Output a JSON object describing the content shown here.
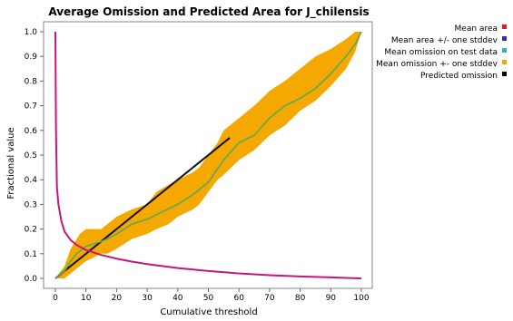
{
  "chart_data": {
    "type": "line",
    "title": "Average Omission and Predicted Area for J_chilensis",
    "xlabel": "Cumulative threshold",
    "ylabel": "Fractional value",
    "xlim": [
      0,
      100
    ],
    "ylim": [
      0,
      1
    ],
    "x_ticks": [
      "0",
      "10",
      "20",
      "30",
      "40",
      "50",
      "60",
      "70",
      "80",
      "90",
      "100"
    ],
    "y_ticks": [
      "0.0",
      "0.1",
      "0.2",
      "0.3",
      "0.4",
      "0.5",
      "0.6",
      "0.7",
      "0.8",
      "0.9",
      "1.0"
    ],
    "grid": false,
    "legend_position": "top-right, outside plot",
    "legend": [
      {
        "label": "Mean area",
        "color": "#e8141e"
      },
      {
        "label": "Mean area +/- one stddev",
        "color": "#2b2bd8"
      },
      {
        "label": "Mean omission on test data",
        "color": "#30b0c8"
      },
      {
        "label": "Mean omission +- one stddev",
        "color": "#f5a800"
      },
      {
        "label": "Predicted omission",
        "color": "#000000"
      }
    ],
    "series": [
      {
        "name": "Mean area",
        "color": "#c8157a",
        "x": [
          0,
          0.2,
          0.5,
          1,
          2,
          3,
          5,
          7,
          10,
          15,
          20,
          25,
          30,
          40,
          50,
          60,
          70,
          80,
          90,
          95,
          100
        ],
        "y": [
          1.0,
          0.6,
          0.37,
          0.3,
          0.23,
          0.19,
          0.155,
          0.135,
          0.115,
          0.095,
          0.08,
          0.068,
          0.058,
          0.042,
          0.03,
          0.02,
          0.013,
          0.008,
          0.004,
          0.002,
          0.0
        ]
      },
      {
        "name": "Mean omission +- one stddev",
        "color": "#f5a800",
        "x": [
          0,
          3,
          5,
          8,
          10,
          15,
          17,
          20,
          25,
          30,
          33,
          37,
          40,
          45,
          47,
          50,
          53,
          55,
          60,
          65,
          70,
          75,
          80,
          85,
          90,
          95,
          98,
          100
        ],
        "upper": [
          0.0,
          0.05,
          0.12,
          0.18,
          0.2,
          0.2,
          0.22,
          0.25,
          0.28,
          0.3,
          0.35,
          0.38,
          0.4,
          0.43,
          0.45,
          0.5,
          0.55,
          0.6,
          0.65,
          0.7,
          0.76,
          0.8,
          0.85,
          0.9,
          0.93,
          0.97,
          1.0,
          1.0
        ],
        "lower": [
          0.0,
          0.0,
          0.02,
          0.05,
          0.07,
          0.1,
          0.1,
          0.12,
          0.16,
          0.18,
          0.2,
          0.22,
          0.25,
          0.28,
          0.3,
          0.35,
          0.4,
          0.42,
          0.48,
          0.52,
          0.58,
          0.62,
          0.68,
          0.72,
          0.78,
          0.85,
          0.92,
          1.0
        ]
      },
      {
        "name": "Mean omission on test data",
        "color": "#5aa85a",
        "x": [
          0,
          2,
          3,
          5,
          7,
          10,
          15,
          17,
          20,
          25,
          30,
          35,
          40,
          45,
          50,
          55,
          60,
          65,
          70,
          75,
          80,
          85,
          90,
          95,
          98,
          100
        ],
        "y": [
          0.0,
          0.02,
          0.03,
          0.07,
          0.1,
          0.13,
          0.15,
          0.16,
          0.18,
          0.22,
          0.24,
          0.27,
          0.3,
          0.34,
          0.39,
          0.48,
          0.55,
          0.58,
          0.65,
          0.7,
          0.73,
          0.77,
          0.83,
          0.9,
          0.95,
          1.0
        ]
      },
      {
        "name": "Predicted omission",
        "color": "#111111",
        "x": [
          0,
          57
        ],
        "y": [
          0,
          0.57
        ]
      }
    ]
  }
}
